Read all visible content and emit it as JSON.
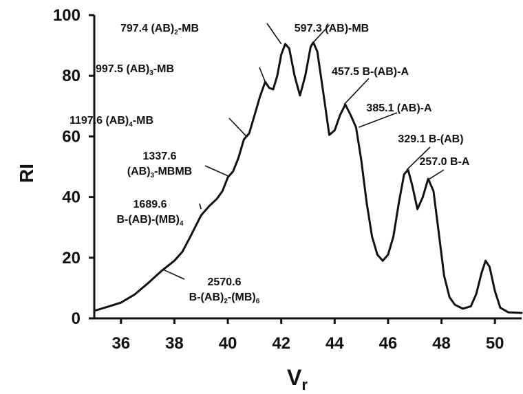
{
  "chart_data": {
    "type": "line",
    "title": "",
    "xlabel": "V",
    "xlabel_subscript": "r",
    "ylabel": "RI",
    "xlim": [
      35,
      51
    ],
    "ylim": [
      0,
      100
    ],
    "xticks": [
      "36",
      "38",
      "40",
      "42",
      "44",
      "46",
      "48",
      "50"
    ],
    "yticks": [
      "0",
      "20",
      "40",
      "60",
      "80",
      "100"
    ],
    "grid": false,
    "series": [
      {
        "name": "",
        "color": "#111111",
        "points": [
          [
            35.0,
            2.5
          ],
          [
            35.5,
            3.8
          ],
          [
            36.0,
            5.2
          ],
          [
            36.5,
            7.8
          ],
          [
            37.0,
            11.5
          ],
          [
            37.5,
            15.5
          ],
          [
            38.0,
            19.0
          ],
          [
            38.3,
            22.0
          ],
          [
            38.6,
            27.0
          ],
          [
            39.0,
            34.0
          ],
          [
            39.3,
            37.0
          ],
          [
            39.6,
            39.5
          ],
          [
            39.8,
            42.0
          ],
          [
            40.0,
            46.5
          ],
          [
            40.2,
            48.5
          ],
          [
            40.4,
            53.0
          ],
          [
            40.6,
            59.0
          ],
          [
            40.8,
            61.0
          ],
          [
            41.0,
            67.0
          ],
          [
            41.2,
            73.0
          ],
          [
            41.4,
            78.0
          ],
          [
            41.55,
            76.0
          ],
          [
            41.7,
            75.5
          ],
          [
            41.85,
            80.0
          ],
          [
            42.0,
            87.0
          ],
          [
            42.15,
            90.5
          ],
          [
            42.3,
            89.0
          ],
          [
            42.5,
            80.0
          ],
          [
            42.7,
            73.5
          ],
          [
            42.9,
            80.0
          ],
          [
            43.1,
            89.5
          ],
          [
            43.2,
            91.0
          ],
          [
            43.35,
            88.0
          ],
          [
            43.55,
            76.0
          ],
          [
            43.8,
            60.5
          ],
          [
            44.0,
            62.0
          ],
          [
            44.2,
            67.0
          ],
          [
            44.4,
            70.5
          ],
          [
            44.6,
            67.0
          ],
          [
            44.8,
            63.0
          ],
          [
            45.0,
            52.0
          ],
          [
            45.2,
            38.0
          ],
          [
            45.4,
            27.0
          ],
          [
            45.6,
            21.0
          ],
          [
            45.8,
            19.0
          ],
          [
            46.0,
            21.0
          ],
          [
            46.2,
            27.0
          ],
          [
            46.4,
            38.0
          ],
          [
            46.6,
            47.5
          ],
          [
            46.75,
            49.0
          ],
          [
            46.9,
            44.0
          ],
          [
            47.1,
            36.0
          ],
          [
            47.3,
            40.0
          ],
          [
            47.5,
            46.0
          ],
          [
            47.7,
            42.0
          ],
          [
            47.9,
            28.0
          ],
          [
            48.1,
            14.0
          ],
          [
            48.3,
            7.0
          ],
          [
            48.5,
            4.5
          ],
          [
            48.8,
            3.2
          ],
          [
            49.1,
            4.0
          ],
          [
            49.3,
            8.0
          ],
          [
            49.5,
            15.0
          ],
          [
            49.65,
            19.0
          ],
          [
            49.8,
            17.0
          ],
          [
            50.0,
            9.0
          ],
          [
            50.2,
            3.5
          ],
          [
            50.5,
            2.0
          ],
          [
            51.0,
            1.8
          ]
        ]
      }
    ],
    "annotations": [
      {
        "id": "ann-797",
        "lines": [
          [
            {
              "t": "797.4 (AB)"
            },
            {
              "t": "2",
              "sub": true
            },
            {
              "t": "-MB"
            }
          ]
        ],
        "x": 42.0,
        "y": 90.5
      },
      {
        "id": "ann-597",
        "lines": [
          [
            {
              "t": "597.3 (AB)-MB"
            }
          ]
        ],
        "x": 43.2,
        "y": 91.0
      },
      {
        "id": "ann-997",
        "lines": [
          [
            {
              "t": "997.5 (AB)"
            },
            {
              "t": "3",
              "sub": true
            },
            {
              "t": "-MB"
            }
          ]
        ],
        "x": 41.4,
        "y": 78.0
      },
      {
        "id": "ann-457",
        "lines": [
          [
            {
              "t": "457.5 B-(AB)-A"
            }
          ]
        ],
        "x": 44.35,
        "y": 70.5
      },
      {
        "id": "ann-385",
        "lines": [
          [
            {
              "t": "385.1 (AB)-A"
            }
          ]
        ],
        "x": 44.9,
        "y": 63.0
      },
      {
        "id": "ann-1197",
        "lines": [
          [
            {
              "t": "1197.6 (AB)"
            },
            {
              "t": "4",
              "sub": true
            },
            {
              "t": "-MB"
            }
          ]
        ],
        "x": 40.7,
        "y": 60.0
      },
      {
        "id": "ann-329",
        "lines": [
          [
            {
              "t": "329.1 B-(AB)"
            }
          ]
        ],
        "x": 46.7,
        "y": 49.0
      },
      {
        "id": "ann-257",
        "lines": [
          [
            {
              "t": "257.0 B-A"
            }
          ]
        ],
        "x": 47.55,
        "y": 46.0
      },
      {
        "id": "ann-1337",
        "lines": [
          [
            {
              "t": "1337.6"
            }
          ],
          [
            {
              "t": "(AB)"
            },
            {
              "t": "3",
              "sub": true
            },
            {
              "t": "-MBMB"
            }
          ]
        ],
        "x": 40.0,
        "y": 47.0
      },
      {
        "id": "ann-1689",
        "lines": [
          [
            {
              "t": "1689.6"
            }
          ],
          [
            {
              "t": "B-(AB)-(MB)"
            },
            {
              "t": "4",
              "sub": true
            }
          ]
        ],
        "x": 39.0,
        "y": 36.0
      },
      {
        "id": "ann-2570",
        "lines": [
          [
            {
              "t": "2570.6"
            }
          ],
          [
            {
              "t": "B-(AB)"
            },
            {
              "t": "2",
              "sub": true
            },
            {
              "t": "-(MB)"
            },
            {
              "t": "6",
              "sub": true
            }
          ]
        ],
        "x": 37.6,
        "y": 16.0
      }
    ]
  }
}
